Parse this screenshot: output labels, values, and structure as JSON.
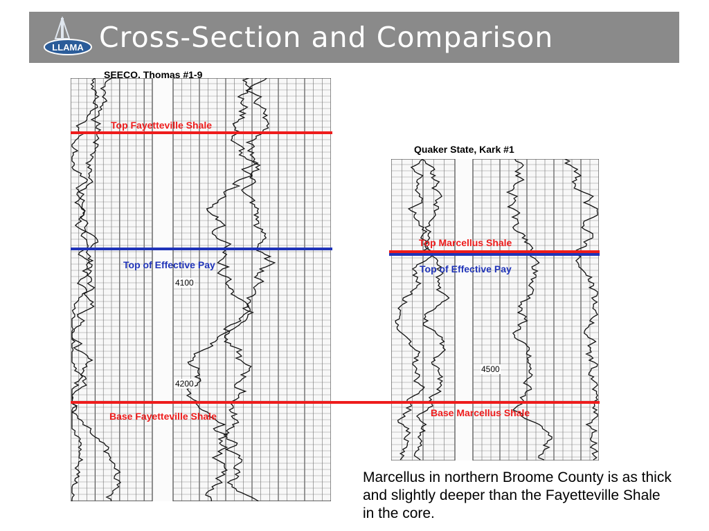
{
  "slide": {
    "title": "Cross-Section and Comparison",
    "logo_text": "LLAMA",
    "caption": "Marcellus in northern Broome County is as thick and slightly deeper than the Fayetteville Shale in the core."
  },
  "left_well": {
    "name": "SEECO, Thomas #1-9",
    "top_marker": "Top Fayetteville Shale",
    "pay_marker": "Top of Effective Pay",
    "base_marker": "Base Fayetteville Shale",
    "depth_labels": [
      "4100",
      "4200"
    ]
  },
  "right_well": {
    "name": "Quaker State, Kark #1",
    "top_marker": "Top Marcellus Shale",
    "pay_marker": "Top of Effective Pay",
    "base_marker": "Base Marcellus Shale",
    "depth_labels": [
      "4500"
    ]
  },
  "colors": {
    "header": "#8a8a8a",
    "marker_red": "#ee1c1c",
    "marker_blue": "#1f33b8"
  }
}
